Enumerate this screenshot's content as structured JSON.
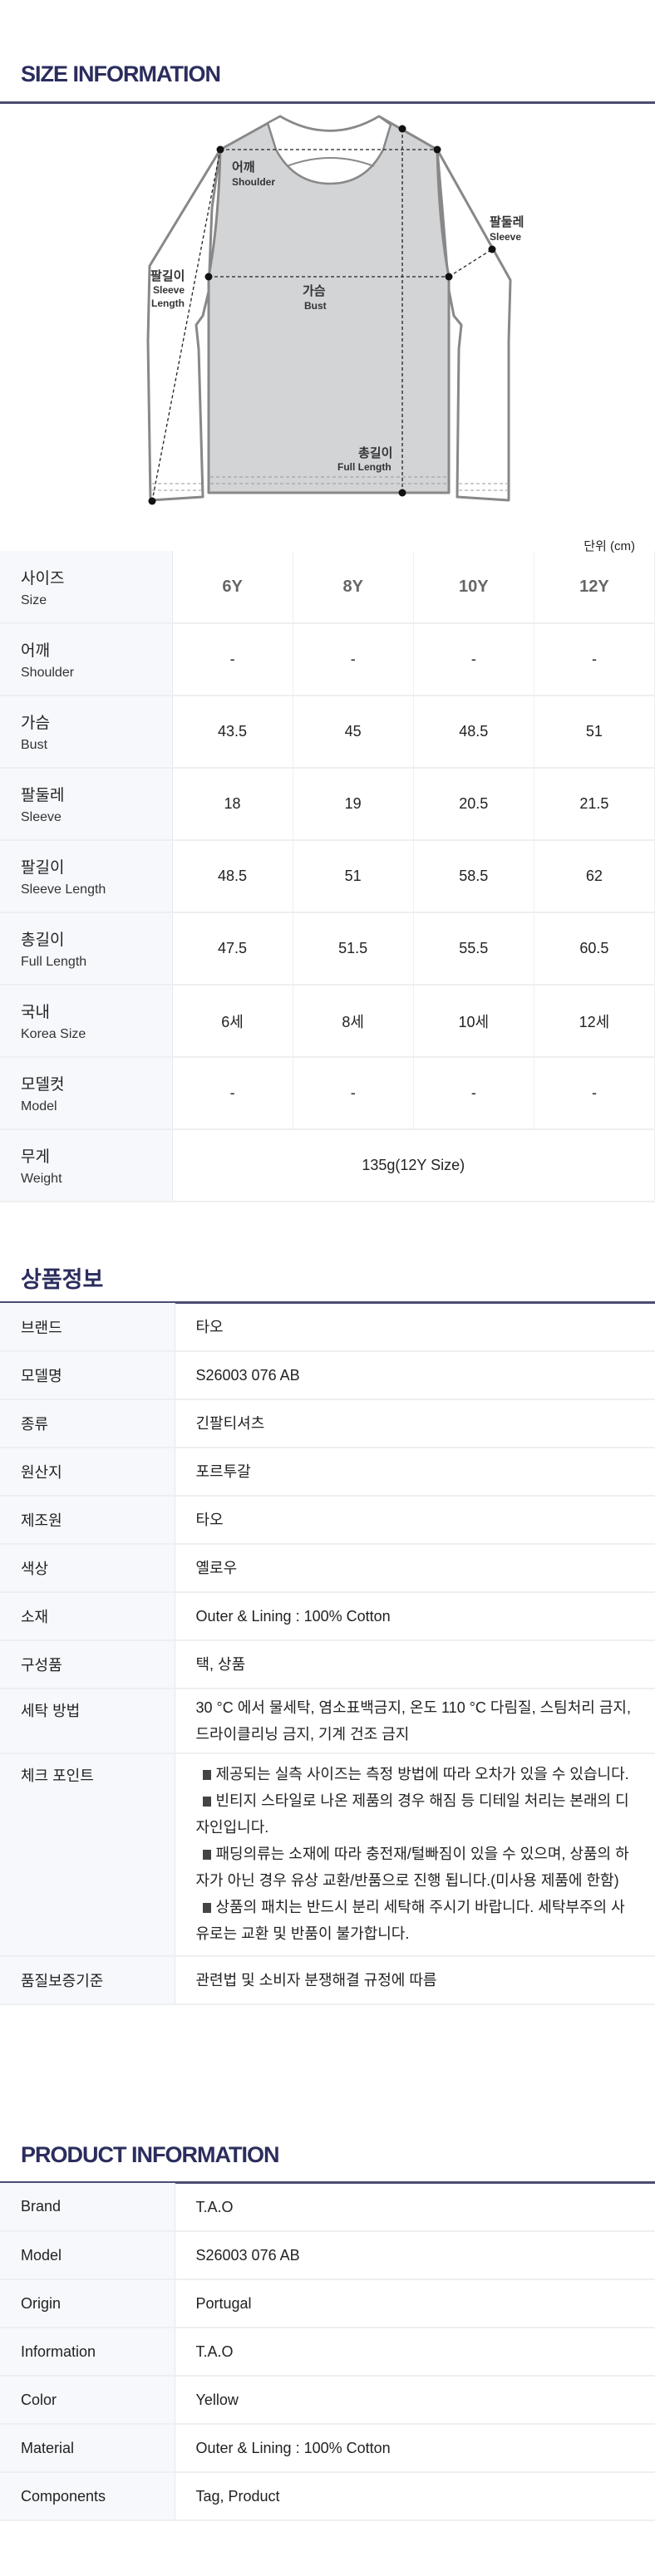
{
  "size_section": {
    "title": "SIZE INFORMATION",
    "diagram_labels": {
      "shoulder_ko": "어깨",
      "shoulder_en": "Shoulder",
      "sleeve_ko": "팔둘레",
      "sleeve_en": "Sleeve",
      "sleeve_length_ko": "팔길이",
      "sleeve_length_en1": "Sleeve",
      "sleeve_length_en2": "Length",
      "bust_ko": "가슴",
      "bust_en": "Bust",
      "full_length_ko": "총길이",
      "full_length_en": "Full Length"
    },
    "unit": "단위 (cm)",
    "header": {
      "ko": "사이즈",
      "en": "Size",
      "sizes": [
        "6Y",
        "8Y",
        "10Y",
        "12Y"
      ]
    },
    "rows": [
      {
        "ko": "어깨",
        "en": "Shoulder",
        "values": [
          "-",
          "-",
          "-",
          "-"
        ]
      },
      {
        "ko": "가슴",
        "en": "Bust",
        "values": [
          "43.5",
          "45",
          "48.5",
          "51"
        ]
      },
      {
        "ko": "팔둘레",
        "en": "Sleeve",
        "values": [
          "18",
          "19",
          "20.5",
          "21.5"
        ]
      },
      {
        "ko": "팔길이",
        "en": "Sleeve Length",
        "values": [
          "48.5",
          "51",
          "58.5",
          "62"
        ]
      },
      {
        "ko": "총길이",
        "en": "Full Length",
        "values": [
          "47.5",
          "51.5",
          "55.5",
          "60.5"
        ]
      },
      {
        "ko": "국내",
        "en": "Korea Size",
        "values": [
          "6세",
          "8세",
          "10세",
          "12세"
        ]
      },
      {
        "ko": "모델컷",
        "en": "Model",
        "values": [
          "-",
          "-",
          "-",
          "-"
        ]
      }
    ],
    "weight": {
      "ko": "무게",
      "en": "Weight",
      "value": "135g(12Y Size)"
    }
  },
  "kr_info": {
    "title": "상품정보",
    "rows": [
      {
        "label": "브랜드",
        "value": "타오"
      },
      {
        "label": "모델명",
        "value": "S26003 076 AB"
      },
      {
        "label": "종류",
        "value": "긴팔티셔츠"
      },
      {
        "label": "원산지",
        "value": "포르투갈"
      },
      {
        "label": "제조원",
        "value": "타오"
      },
      {
        "label": "색상",
        "value": "옐로우"
      },
      {
        "label": "소재",
        "value": "Outer & Lining : 100% Cotton"
      },
      {
        "label": "구성품",
        "value": "택, 상품"
      },
      {
        "label": "세탁 방법",
        "value": "30 °C 에서 물세탁, 염소표백금지, 온도 110 °C 다림질, 스팀처리 금지, 드라이클리닝 금지, 기계 건조 금지"
      }
    ],
    "checkpoint": {
      "label": "체크 포인트",
      "items": [
        "제공되는 실측 사이즈는 측정 방법에 따라 오차가 있을 수 있습니다.",
        "빈티지 스타일로 나온 제품의 경우 해짐 등 디테일 처리는 본래의 디자인입니다.",
        "패딩의류는 소재에 따라 충전재/털빠짐이 있을 수 있으며, 상품의 하자가 아닌 경우 유상 교환/반품으로 진행 됩니다.(미사용 제품에 한함)",
        "상품의 패치는 반드시 분리 세탁해 주시기 바랍니다. 세탁부주의 사유로는 교환 및 반품이 불가합니다."
      ]
    },
    "quality": {
      "label": "품질보증기준",
      "value": "관련법 및 소비자 분쟁해결 규정에 따름"
    }
  },
  "en_info": {
    "title": "PRODUCT INFORMATION",
    "rows": [
      {
        "label": "Brand",
        "value": "T.A.O"
      },
      {
        "label": "Model",
        "value": "S26003 076 AB"
      },
      {
        "label": "Origin",
        "value": "Portugal"
      },
      {
        "label": "Information",
        "value": "T.A.O"
      },
      {
        "label": "Color",
        "value": "Yellow"
      },
      {
        "label": "Material",
        "value": "Outer & Lining : 100% Cotton"
      },
      {
        "label": "Components",
        "value": "Tag, Product"
      }
    ]
  },
  "colors": {
    "heading": "#2b2d5e",
    "label_bg": "#f7f8fc",
    "body_fill": "#d3d4d6"
  }
}
